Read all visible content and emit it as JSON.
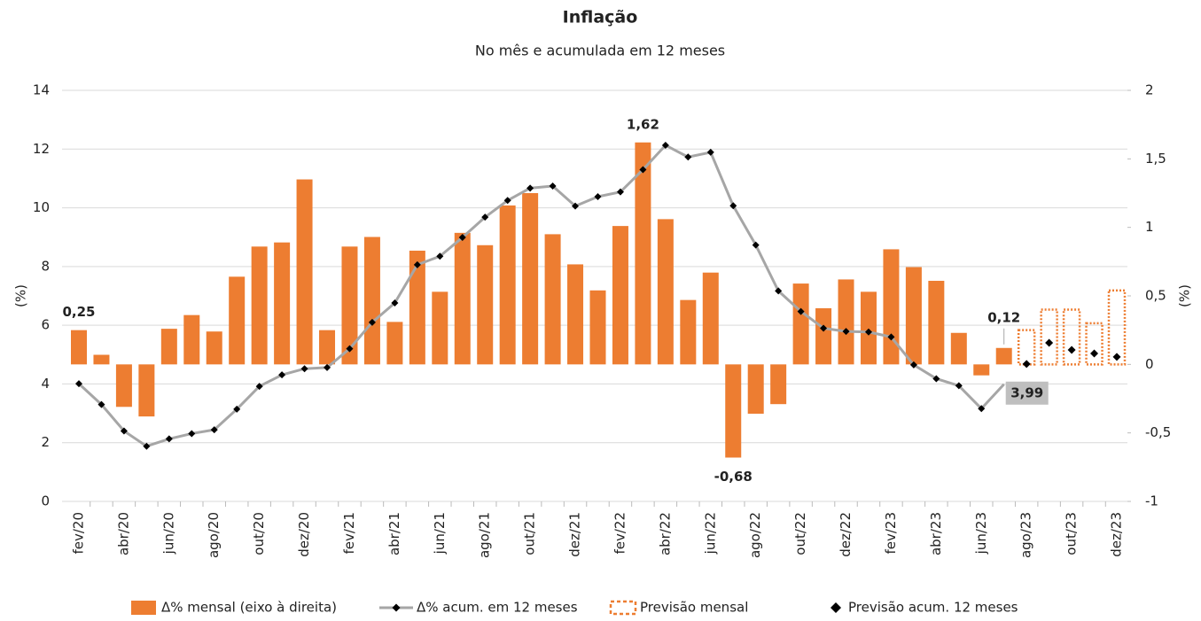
{
  "chart_data": {
    "type": "combo",
    "title": "Inflação",
    "subtitle": "No mês e acumulada em 12 meses",
    "y_label": "(%)",
    "y2_label": "(%)",
    "categories": [
      "fev/20",
      null,
      "abr/20",
      null,
      "jun/20",
      null,
      "ago/20",
      null,
      "out/20",
      null,
      "dez/20",
      null,
      "fev/21",
      null,
      "abr/21",
      null,
      "jun/21",
      null,
      "ago/21",
      null,
      "out/21",
      null,
      "dez/21",
      null,
      "fev/22",
      null,
      "abr/22",
      null,
      "jun/22",
      null,
      "ago/22",
      null,
      "out/22",
      null,
      "dez/22",
      null,
      "fev/23",
      null,
      "abr/23",
      null,
      "jun/23",
      null,
      "ago/23",
      null,
      "out/23",
      null,
      "dez/23"
    ],
    "ylim": [
      0,
      14
    ],
    "yticks": [
      0,
      2,
      4,
      6,
      8,
      10,
      12,
      14
    ],
    "y2lim": [
      -1,
      2
    ],
    "y2ticks": [
      -1,
      {
        "value": -0.5,
        "label": "-0,5"
      },
      0,
      {
        "value": 0.5,
        "label": "0,5"
      },
      1,
      {
        "value": 1.5,
        "label": "1,5"
      },
      2
    ],
    "grid": true,
    "legend": "bottom",
    "series": [
      {
        "name": "Δ% mensal (eixo à direita)",
        "kind": "bar",
        "axis": "y2",
        "color": "#ed7d31",
        "values": [
          0.25,
          0.07,
          -0.31,
          -0.38,
          0.26,
          0.36,
          0.24,
          0.64,
          0.86,
          0.89,
          1.35,
          0.25,
          0.86,
          0.93,
          0.31,
          0.83,
          0.53,
          0.96,
          0.87,
          1.16,
          1.25,
          0.95,
          0.73,
          0.54,
          1.01,
          1.62,
          1.06,
          0.47,
          0.67,
          -0.68,
          -0.36,
          -0.29,
          0.59,
          0.41,
          0.62,
          0.53,
          0.84,
          0.71,
          0.61,
          0.23,
          -0.08,
          0.12,
          null,
          null,
          null,
          null,
          null
        ],
        "value_labels": [
          "0,25",
          null,
          null,
          null,
          null,
          null,
          null,
          null,
          null,
          null,
          null,
          null,
          null,
          null,
          null,
          null,
          null,
          null,
          null,
          null,
          null,
          null,
          null,
          null,
          null,
          "1,62",
          null,
          null,
          null,
          "-0,68",
          null,
          null,
          null,
          null,
          null,
          null,
          null,
          null,
          null,
          null,
          null,
          "0,12",
          null,
          null,
          null,
          null,
          null
        ]
      },
      {
        "name": "Δ% acum. em 12 meses",
        "kind": "line",
        "color": "#a6a6a6",
        "values": [
          4.01,
          3.3,
          2.4,
          1.88,
          2.13,
          2.31,
          2.44,
          3.14,
          3.92,
          4.31,
          4.52,
          4.56,
          5.2,
          6.1,
          6.76,
          8.06,
          8.35,
          8.99,
          9.68,
          10.25,
          10.67,
          10.74,
          10.06,
          10.38,
          10.54,
          11.3,
          12.13,
          11.73,
          11.89,
          10.07,
          8.73,
          7.17,
          6.47,
          5.9,
          5.79,
          5.77,
          5.6,
          4.65,
          4.18,
          3.94,
          3.16,
          3.99,
          null,
          null,
          null,
          null,
          null
        ],
        "value_labels": [
          null,
          null,
          null,
          null,
          null,
          null,
          null,
          null,
          null,
          null,
          null,
          null,
          null,
          null,
          null,
          null,
          null,
          null,
          null,
          null,
          null,
          null,
          null,
          null,
          null,
          null,
          null,
          null,
          null,
          null,
          null,
          null,
          null,
          null,
          null,
          null,
          null,
          null,
          null,
          null,
          null,
          "3,99",
          null,
          null,
          null,
          null,
          null
        ]
      },
      {
        "name": "Previsão mensal",
        "kind": "forecast-bar",
        "axis": "y2",
        "color": "#ed7d31",
        "values": [
          null,
          null,
          null,
          null,
          null,
          null,
          null,
          null,
          null,
          null,
          null,
          null,
          null,
          null,
          null,
          null,
          null,
          null,
          null,
          null,
          null,
          null,
          null,
          null,
          null,
          null,
          null,
          null,
          null,
          null,
          null,
          null,
          null,
          null,
          null,
          null,
          null,
          null,
          null,
          null,
          null,
          null,
          0.25,
          0.4,
          0.4,
          0.3,
          0.54
        ]
      },
      {
        "name": "Previsão acum. 12 meses",
        "kind": "marker",
        "color": "#000000",
        "values": [
          null,
          null,
          null,
          null,
          null,
          null,
          null,
          null,
          null,
          null,
          null,
          null,
          null,
          null,
          null,
          null,
          null,
          null,
          null,
          null,
          null,
          null,
          null,
          null,
          null,
          null,
          null,
          null,
          null,
          null,
          null,
          null,
          null,
          null,
          null,
          null,
          null,
          null,
          null,
          null,
          null,
          null,
          4.68,
          5.4,
          5.16,
          5.04,
          4.92
        ]
      }
    ]
  }
}
